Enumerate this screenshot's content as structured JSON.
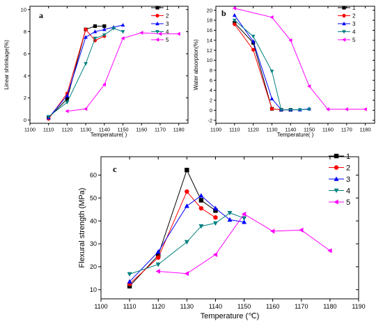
{
  "chart_data": [
    {
      "panel": "a",
      "type": "line",
      "xlabel": "Temperature(  )",
      "ylabel": "Linear shrinkage(%)",
      "xlim": [
        1100,
        1185
      ],
      "ylim": [
        -0.3,
        10.3
      ],
      "xticks": [
        1100,
        1110,
        1120,
        1130,
        1140,
        1150,
        1160,
        1170,
        1180
      ],
      "yticks": [
        0,
        2,
        4,
        6,
        8,
        10
      ],
      "legend": "top-right",
      "series": [
        {
          "name": "1",
          "color": "#000000",
          "marker": "square",
          "x": [
            1110,
            1120,
            1130,
            1135,
            1140
          ],
          "y": [
            0.2,
            1.9,
            8.2,
            8.5,
            8.5
          ]
        },
        {
          "name": "2",
          "color": "#ff0000",
          "marker": "circle",
          "x": [
            1110,
            1120,
            1130,
            1135,
            1140
          ],
          "y": [
            0.1,
            2.4,
            8.2,
            7.2,
            7.6
          ]
        },
        {
          "name": "3",
          "color": "#0000ff",
          "marker": "triangle-up",
          "x": [
            1110,
            1120,
            1130,
            1135,
            1140,
            1145,
            1150
          ],
          "y": [
            0.2,
            2.2,
            7.5,
            8.0,
            8.2,
            8.4,
            8.6
          ]
        },
        {
          "name": "4",
          "color": "#008080",
          "marker": "triangle-down",
          "x": [
            1110,
            1120,
            1130,
            1135,
            1140,
            1145,
            1150
          ],
          "y": [
            0.3,
            1.6,
            5.1,
            7.4,
            7.7,
            8.3,
            8.0
          ]
        },
        {
          "name": "5",
          "color": "#ff00ff",
          "marker": "triangle-left",
          "x": [
            1120,
            1130,
            1140,
            1150,
            1160,
            1170,
            1180
          ],
          "y": [
            0.8,
            1.0,
            3.2,
            7.4,
            7.9,
            7.8,
            7.8
          ]
        }
      ]
    },
    {
      "panel": "b",
      "type": "line",
      "xlabel": "Temperature(  )",
      "ylabel": "Water absorption(%)",
      "xlim": [
        1100,
        1185
      ],
      "ylim": [
        -2.6,
        20.8
      ],
      "xticks": [
        1100,
        1110,
        1120,
        1130,
        1140,
        1150,
        1160,
        1170,
        1180
      ],
      "yticks": [
        -2,
        0,
        2,
        4,
        6,
        8,
        10,
        12,
        14,
        16,
        18,
        20
      ],
      "legend": "top-right",
      "series": [
        {
          "name": "1",
          "color": "#000000",
          "marker": "square",
          "x": [
            1110,
            1120,
            1130,
            1135,
            1140
          ],
          "y": [
            17.5,
            13.5,
            0.3,
            0.1,
            0.1
          ]
        },
        {
          "name": "2",
          "color": "#ff0000",
          "marker": "circle",
          "x": [
            1110,
            1120,
            1130,
            1135,
            1140
          ],
          "y": [
            17.2,
            12.1,
            0.3,
            0.1,
            0.1
          ]
        },
        {
          "name": "3",
          "color": "#0000ff",
          "marker": "triangle-up",
          "x": [
            1110,
            1120,
            1130,
            1135,
            1140,
            1145,
            1150
          ],
          "y": [
            19.0,
            13.8,
            2.3,
            0.1,
            0.1,
            0.1,
            0.3
          ]
        },
        {
          "name": "4",
          "color": "#008080",
          "marker": "triangle-down",
          "x": [
            1110,
            1120,
            1130,
            1135,
            1140,
            1145,
            1150
          ],
          "y": [
            18.0,
            14.8,
            7.8,
            0.1,
            0.1,
            0.1,
            0.2
          ]
        },
        {
          "name": "5",
          "color": "#ff00ff",
          "marker": "triangle-left",
          "x": [
            1110,
            1130,
            1140,
            1150,
            1160,
            1170,
            1180
          ],
          "y": [
            20.4,
            18.6,
            14.0,
            4.8,
            0.2,
            0.2,
            0.2
          ]
        }
      ]
    },
    {
      "panel": "c",
      "type": "line",
      "xlabel": "Temperature (℃)",
      "ylabel": "Flexural strength (MPa)",
      "xlim": [
        1100,
        1190
      ],
      "ylim": [
        6,
        68
      ],
      "xticks": [
        1100,
        1110,
        1120,
        1130,
        1140,
        1150,
        1160,
        1170,
        1180,
        1190
      ],
      "yticks": [
        10,
        20,
        30,
        40,
        50,
        60
      ],
      "legend": "top-right",
      "series": [
        {
          "name": "1",
          "color": "#000000",
          "marker": "square",
          "x": [
            1110,
            1120,
            1130,
            1135,
            1140
          ],
          "y": [
            11.5,
            25.0,
            62.2,
            49.0,
            44.5
          ]
        },
        {
          "name": "2",
          "color": "#ff0000",
          "marker": "circle",
          "x": [
            1110,
            1120,
            1130,
            1135,
            1140
          ],
          "y": [
            12.5,
            24.0,
            52.8,
            45.5,
            41.5
          ]
        },
        {
          "name": "3",
          "color": "#0000ff",
          "marker": "triangle-up",
          "x": [
            1110,
            1120,
            1130,
            1135,
            1140,
            1145,
            1150
          ],
          "y": [
            13.5,
            26.5,
            46.5,
            51.0,
            45.5,
            40.5,
            39.5
          ]
        },
        {
          "name": "4",
          "color": "#008080",
          "marker": "triangle-down",
          "x": [
            1110,
            1120,
            1130,
            1135,
            1140,
            1145,
            1150
          ],
          "y": [
            16.8,
            21.0,
            30.8,
            37.7,
            39.0,
            43.5,
            41.2
          ]
        },
        {
          "name": "5",
          "color": "#ff00ff",
          "marker": "triangle-left",
          "x": [
            1120,
            1130,
            1140,
            1150,
            1160,
            1170,
            1180
          ],
          "y": [
            18.0,
            17.0,
            25.3,
            43.0,
            35.5,
            36.0,
            27.0
          ]
        }
      ]
    }
  ]
}
